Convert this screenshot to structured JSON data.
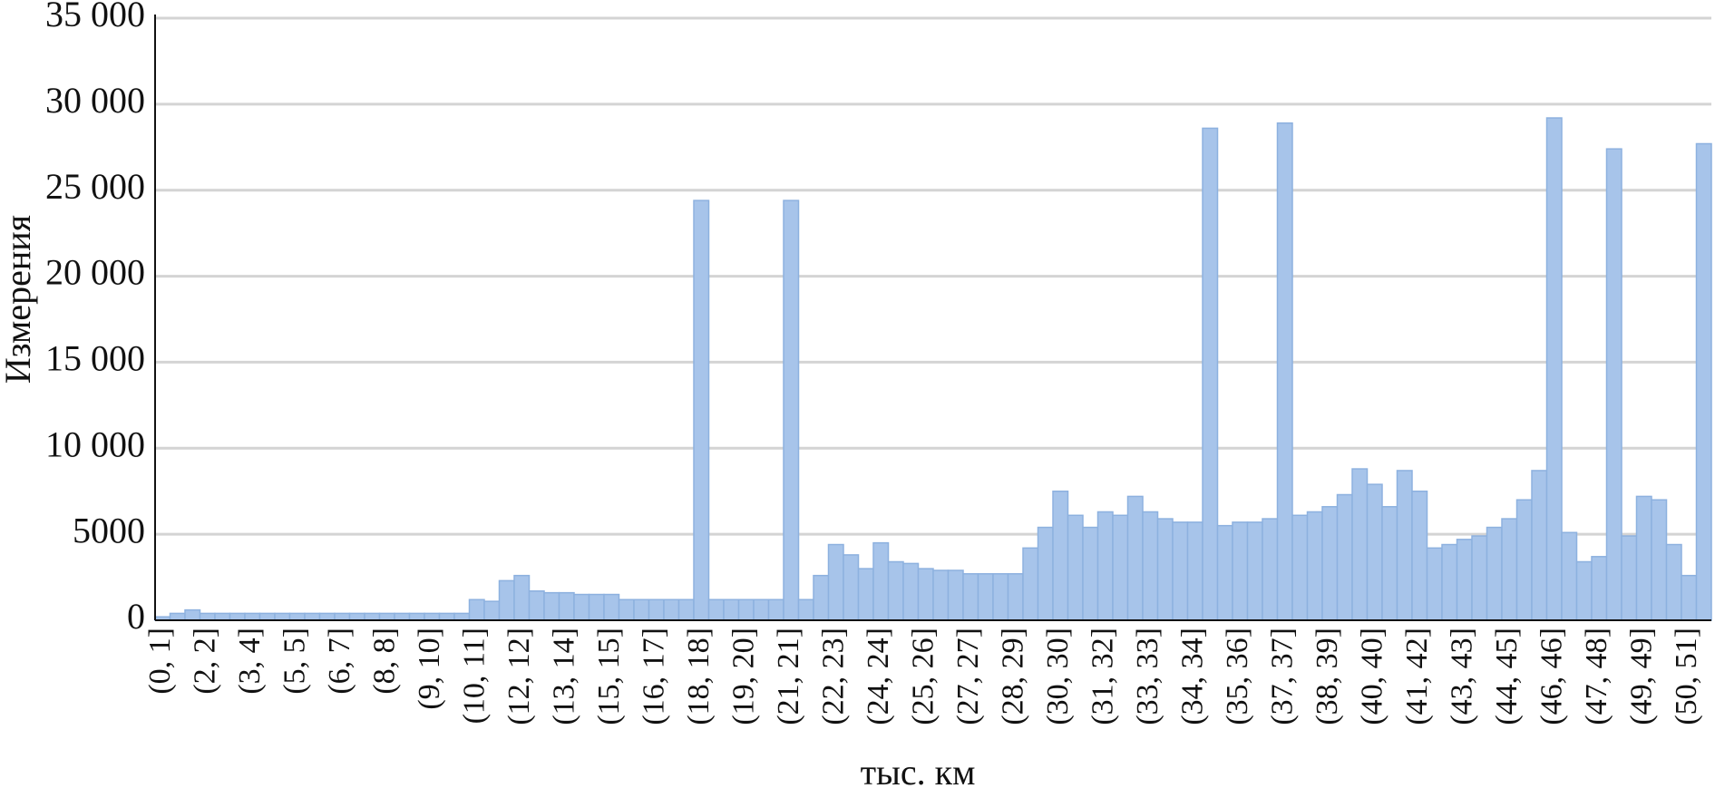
{
  "chart_data": {
    "type": "bar",
    "x_label": "тыс. км",
    "y_label": "Измерения",
    "categories": [
      "(0, 1]",
      null,
      null,
      "(2, 2]",
      null,
      null,
      "(3, 4]",
      null,
      null,
      "(5, 5]",
      null,
      null,
      "(6, 7]",
      null,
      null,
      "(8, 8]",
      null,
      null,
      "(9, 10]",
      null,
      null,
      "(10, 11]",
      null,
      null,
      "(12, 12]",
      null,
      null,
      "(13, 14]",
      null,
      null,
      "(15, 15]",
      null,
      null,
      "(16, 17]",
      null,
      null,
      "(18, 18]",
      null,
      null,
      "(19, 20]",
      null,
      null,
      "(21, 21]",
      null,
      null,
      "(22, 23]",
      null,
      null,
      "(24, 24]",
      null,
      null,
      "(25, 26]",
      null,
      null,
      "(27, 27]",
      null,
      null,
      "(28, 29]",
      null,
      null,
      "(30, 30]",
      null,
      null,
      "(31, 32]",
      null,
      null,
      "(33, 33]",
      null,
      null,
      "(34, 34]",
      null,
      null,
      "(35, 36]",
      null,
      null,
      "(37, 37]",
      null,
      null,
      "(38, 39]",
      null,
      null,
      "(40, 40]",
      null,
      null,
      "(41, 42]",
      null,
      null,
      "(43, 43]",
      null,
      null,
      "(44, 45]",
      null,
      null,
      "(46, 46]",
      null,
      null,
      "(47, 48]",
      null,
      null,
      "(49, 49]",
      null,
      null,
      "(50, 51]",
      null
    ],
    "values": [
      200,
      400,
      600,
      400,
      400,
      400,
      400,
      400,
      400,
      400,
      400,
      400,
      400,
      400,
      400,
      400,
      400,
      400,
      400,
      400,
      400,
      1200,
      1100,
      2300,
      2600,
      1700,
      1600,
      1600,
      1500,
      1500,
      1500,
      1200,
      1200,
      1200,
      1200,
      1200,
      24400,
      1200,
      1200,
      1200,
      1200,
      1200,
      24400,
      1200,
      2600,
      4400,
      3800,
      3000,
      4500,
      3400,
      3300,
      3000,
      2900,
      2900,
      2700,
      2700,
      2700,
      2700,
      4200,
      5400,
      7500,
      6100,
      5400,
      6300,
      6100,
      7200,
      6300,
      5900,
      5700,
      5700,
      28600,
      5500,
      5700,
      5700,
      5900,
      28900,
      6100,
      6300,
      6600,
      7300,
      8800,
      7900,
      6600,
      8700,
      7500,
      4200,
      4400,
      4700,
      4900,
      5400,
      5900,
      7000,
      8700,
      29200,
      5100,
      3400,
      3700,
      27400,
      4900,
      7200,
      7000,
      4400,
      2600,
      27700
    ],
    "color": "#a7c4ea",
    "ylim": [
      0,
      35000
    ],
    "yticks": [
      0,
      5000,
      {
        "value": 10000,
        "label": "10 000"
      },
      {
        "value": 15000,
        "label": "15 000"
      },
      {
        "value": 20000,
        "label": "20 000"
      },
      {
        "value": 25000,
        "label": "25 000"
      },
      {
        "value": 30000,
        "label": "30 000"
      },
      {
        "value": 35000,
        "label": "35 000"
      }
    ],
    "grid": true
  }
}
